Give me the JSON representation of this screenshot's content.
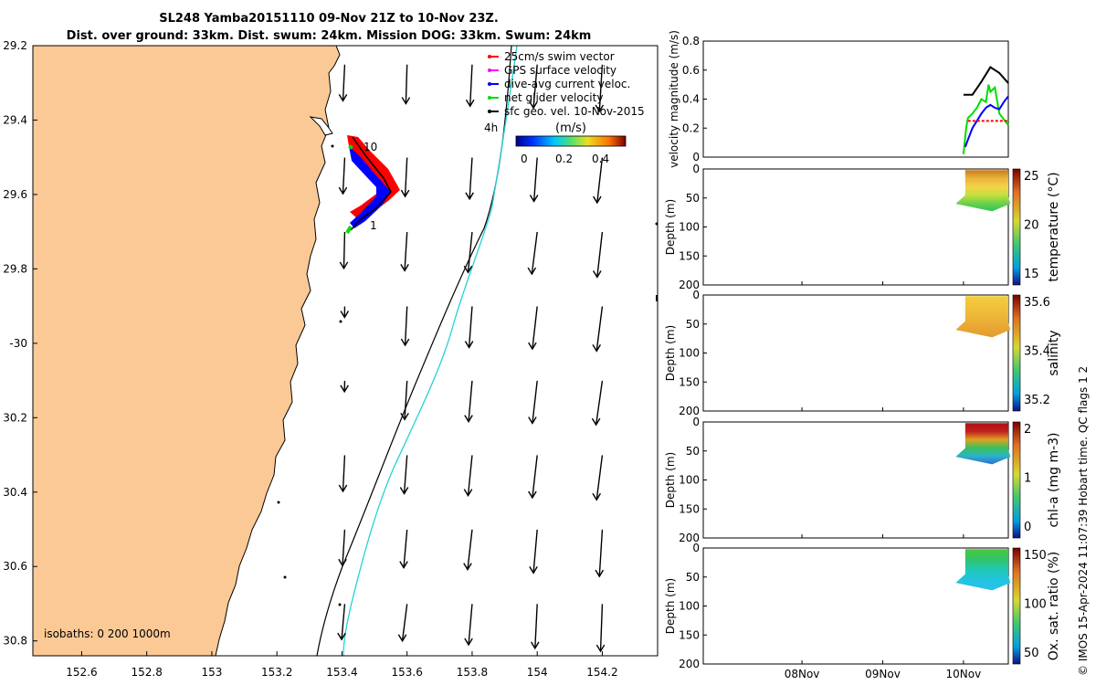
{
  "title": {
    "line1": "SL248 Yamba20151110 09-Nov 21Z to 10-Nov 23Z.",
    "line2": "Dist. over ground: 33km. Dist. swum: 24km. Mission DOG: 33km. Swum: 24km"
  },
  "credit": "© IMOS 15-Apr-2024 11:07:39 Hobart time. QC flags 1  2",
  "colors": {
    "land": "#fbc996",
    "swim": "#ff0000",
    "gps": "#ff00ff",
    "diveavg": "#0000ff",
    "net": "#00dd00",
    "sfc": "#000000",
    "cyan": "#22d3d3"
  },
  "chart_data": [
    {
      "type": "map",
      "name": "trajectory map",
      "xlim": [
        152.45,
        154.37
      ],
      "ylim": [
        -30.84,
        -29.2
      ],
      "xticks": [
        152.6,
        152.8,
        153,
        153.2,
        153.4,
        153.6,
        153.8,
        154,
        154.2
      ],
      "xtick_labels": [
        "152.6",
        "152.8",
        "153",
        "153.2",
        "153.4",
        "153.6",
        "153.8",
        "154",
        "154.2"
      ],
      "yticks": [
        -29.2,
        -29.4,
        -29.6,
        -29.8,
        -30,
        -30.2,
        -30.4,
        -30.6,
        -30.8
      ],
      "ytick_labels": [
        "29.2",
        "29.4",
        "29.6",
        "29.8",
        "-30",
        "30.2",
        "30.4",
        "30.6",
        "30.8"
      ],
      "isobath_label": "isobaths: 0   200  1000m",
      "legend": [
        {
          "label": "25cm/s swim vector",
          "color": "#ff0000"
        },
        {
          "label": "GPS surface velocity",
          "color": "#ff00ff"
        },
        {
          "label": "dive-avg current veloc.",
          "color": "#0000ff"
        },
        {
          "label": "net glider velocity",
          "color": "#00dd00"
        },
        {
          "label": "sfc geo. vel. 10-Nov-2015",
          "color": "#000000"
        }
      ],
      "colorbar": {
        "title": "(m/s)",
        "ticks": [
          "0",
          "0.2",
          "0.4"
        ],
        "label_4h": "4h"
      },
      "track_labels": [
        "10",
        "1"
      ],
      "track": {
        "lon": [
          153.4,
          153.42,
          153.45,
          153.48,
          153.42,
          153.38
        ],
        "lat": [
          -29.46,
          -29.5,
          -29.55,
          -29.6,
          -29.65,
          -29.69
        ]
      },
      "vector_grid": {
        "lon": [
          153.4,
          153.6,
          153.8,
          154.0,
          154.2
        ],
        "lat": [
          -29.3,
          -29.55,
          -29.75,
          -29.95,
          -30.15,
          -30.35,
          -30.55,
          -30.75
        ]
      }
    },
    {
      "type": "line",
      "name": "velocity magnitude",
      "ylabel": "velocity magnitude (m/s)",
      "ylim": [
        0,
        0.8
      ],
      "yticks": [
        "0",
        "0.2",
        "0.4",
        "0.6",
        "0.8"
      ],
      "xlim_days": [
        0,
        3.4
      ],
      "series": [
        {
          "name": "sfc geo. vel.",
          "color": "#000000",
          "x": [
            2.9,
            3.0,
            3.1,
            3.2,
            3.3,
            3.4
          ],
          "y": [
            0.43,
            0.43,
            0.52,
            0.62,
            0.58,
            0.51
          ]
        },
        {
          "name": "net glider velocity",
          "color": "#00dd00",
          "x": [
            2.9,
            2.93,
            2.95,
            3.0,
            3.05,
            3.1,
            3.15,
            3.18,
            3.2,
            3.25,
            3.3,
            3.35,
            3.4
          ],
          "y": [
            0.02,
            0.2,
            0.27,
            0.3,
            0.34,
            0.4,
            0.38,
            0.5,
            0.45,
            0.48,
            0.3,
            0.26,
            0.22
          ]
        },
        {
          "name": "dive-avg current veloc.",
          "color": "#0000ff",
          "x": [
            2.92,
            2.95,
            3.0,
            3.05,
            3.1,
            3.15,
            3.2,
            3.25,
            3.3,
            3.35,
            3.4
          ],
          "y": [
            0.07,
            0.12,
            0.2,
            0.25,
            0.3,
            0.34,
            0.36,
            0.34,
            0.33,
            0.38,
            0.42
          ]
        },
        {
          "name": "25cm/s swim vector",
          "color": "#ff0000",
          "x": [
            2.95,
            3.4
          ],
          "y": [
            0.25,
            0.25
          ]
        }
      ]
    },
    {
      "type": "heatmap",
      "name": "temperature",
      "ylabel": "Depth (m)",
      "cbar_label": "temperature (°C)",
      "yticks": [
        "0",
        "50",
        "100",
        "150",
        "200"
      ],
      "cbar_ticks": [
        "25",
        "20",
        "15"
      ],
      "colors_top_to_bottom": [
        "#c87b1e",
        "#e9b43a",
        "#f5d24a",
        "#c7e03d",
        "#6ed14a",
        "#2fc45a"
      ]
    },
    {
      "type": "heatmap",
      "name": "salinity",
      "ylabel": "Depth (m)",
      "cbar_label": "salinity",
      "yticks": [
        "0",
        "50",
        "100",
        "150",
        "200"
      ],
      "cbar_ticks": [
        "35.6",
        "35.4",
        "35.2"
      ],
      "colors_top_to_bottom": [
        "#f2cf3e",
        "#f1c23a",
        "#edb538",
        "#e8a733",
        "#e39c30"
      ]
    },
    {
      "type": "heatmap",
      "name": "chl-a",
      "ylabel": "Depth (m)",
      "cbar_label": "chl-a (mg m-3)",
      "yticks": [
        "0",
        "50",
        "100",
        "150",
        "200"
      ],
      "cbar_ticks": [
        "2",
        "1",
        "0"
      ],
      "colors_top_to_bottom": [
        "#b01010",
        "#c02020",
        "#e0a020",
        "#39c05a",
        "#2ab2c8",
        "#2f70d8"
      ]
    },
    {
      "type": "heatmap",
      "name": "oxygen saturation",
      "ylabel": "Depth (m)",
      "cbar_label": "Ox. sat. ratio (%)",
      "yticks": [
        "0",
        "50",
        "100",
        "150",
        "200"
      ],
      "cbar_ticks": [
        "150",
        "100",
        "50"
      ],
      "colors_top_to_bottom": [
        "#4cc83a",
        "#2fc46a",
        "#1fc8b6",
        "#22c4e0",
        "#2ac0ea"
      ],
      "xtick_labels": [
        "08Nov",
        "09Nov",
        "10Nov"
      ]
    }
  ]
}
